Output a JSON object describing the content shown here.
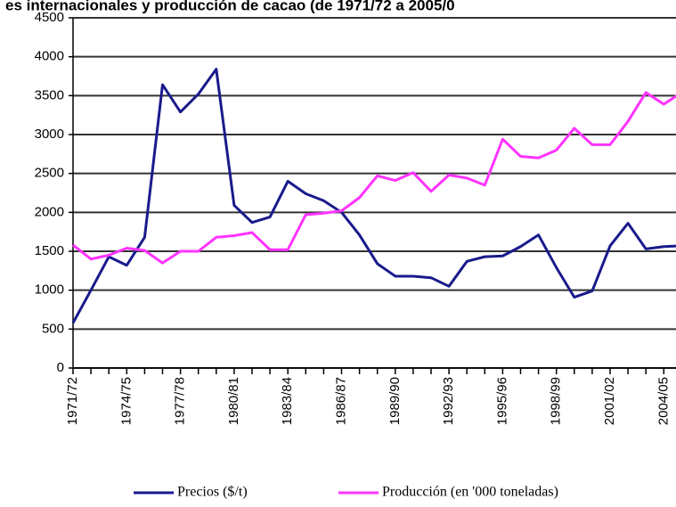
{
  "chart_data": {
    "type": "line",
    "title": "es internacionales y producción de cacao (de 1971/72 a 2005/0",
    "categories": [
      "1971/72",
      null,
      null,
      "1974/75",
      null,
      null,
      "1977/78",
      null,
      null,
      "1980/81",
      null,
      null,
      "1983/84",
      null,
      null,
      "1986/87",
      null,
      null,
      "1989/90",
      null,
      null,
      "1992/93",
      null,
      null,
      "1995/96",
      null,
      null,
      "1998/99",
      null,
      null,
      "2001/02",
      null,
      null,
      "2004/05",
      null
    ],
    "series": [
      {
        "name": "Precios ($/t)",
        "color": "#1a1a8c",
        "values": [
          580,
          1000,
          1430,
          1320,
          1680,
          3640,
          3290,
          3520,
          3840,
          2090,
          1870,
          1940,
          2400,
          2240,
          2150,
          2000,
          1710,
          1340,
          1180,
          1180,
          1160,
          1050,
          1370,
          1430,
          1440,
          1560,
          1710,
          1290,
          910,
          990,
          1570,
          1860,
          1530,
          1560,
          1570
        ]
      },
      {
        "name": "Producción (en '000 toneladas)",
        "color": "#ff33ff",
        "values": [
          1580,
          1400,
          1450,
          1540,
          1510,
          1350,
          1500,
          1500,
          1680,
          1700,
          1740,
          1520,
          1520,
          1970,
          1990,
          2020,
          2190,
          2470,
          2410,
          2510,
          2270,
          2480,
          2440,
          2350,
          2940,
          2720,
          2700,
          2800,
          3080,
          2870,
          2870,
          3170,
          3540,
          3390,
          3540
        ]
      }
    ],
    "ylim": [
      0,
      4500
    ],
    "yticks": [
      0,
      500,
      1000,
      1500,
      2000,
      2500,
      3000,
      3500,
      4000,
      4500
    ],
    "grid": true,
    "legend": "bottom"
  }
}
